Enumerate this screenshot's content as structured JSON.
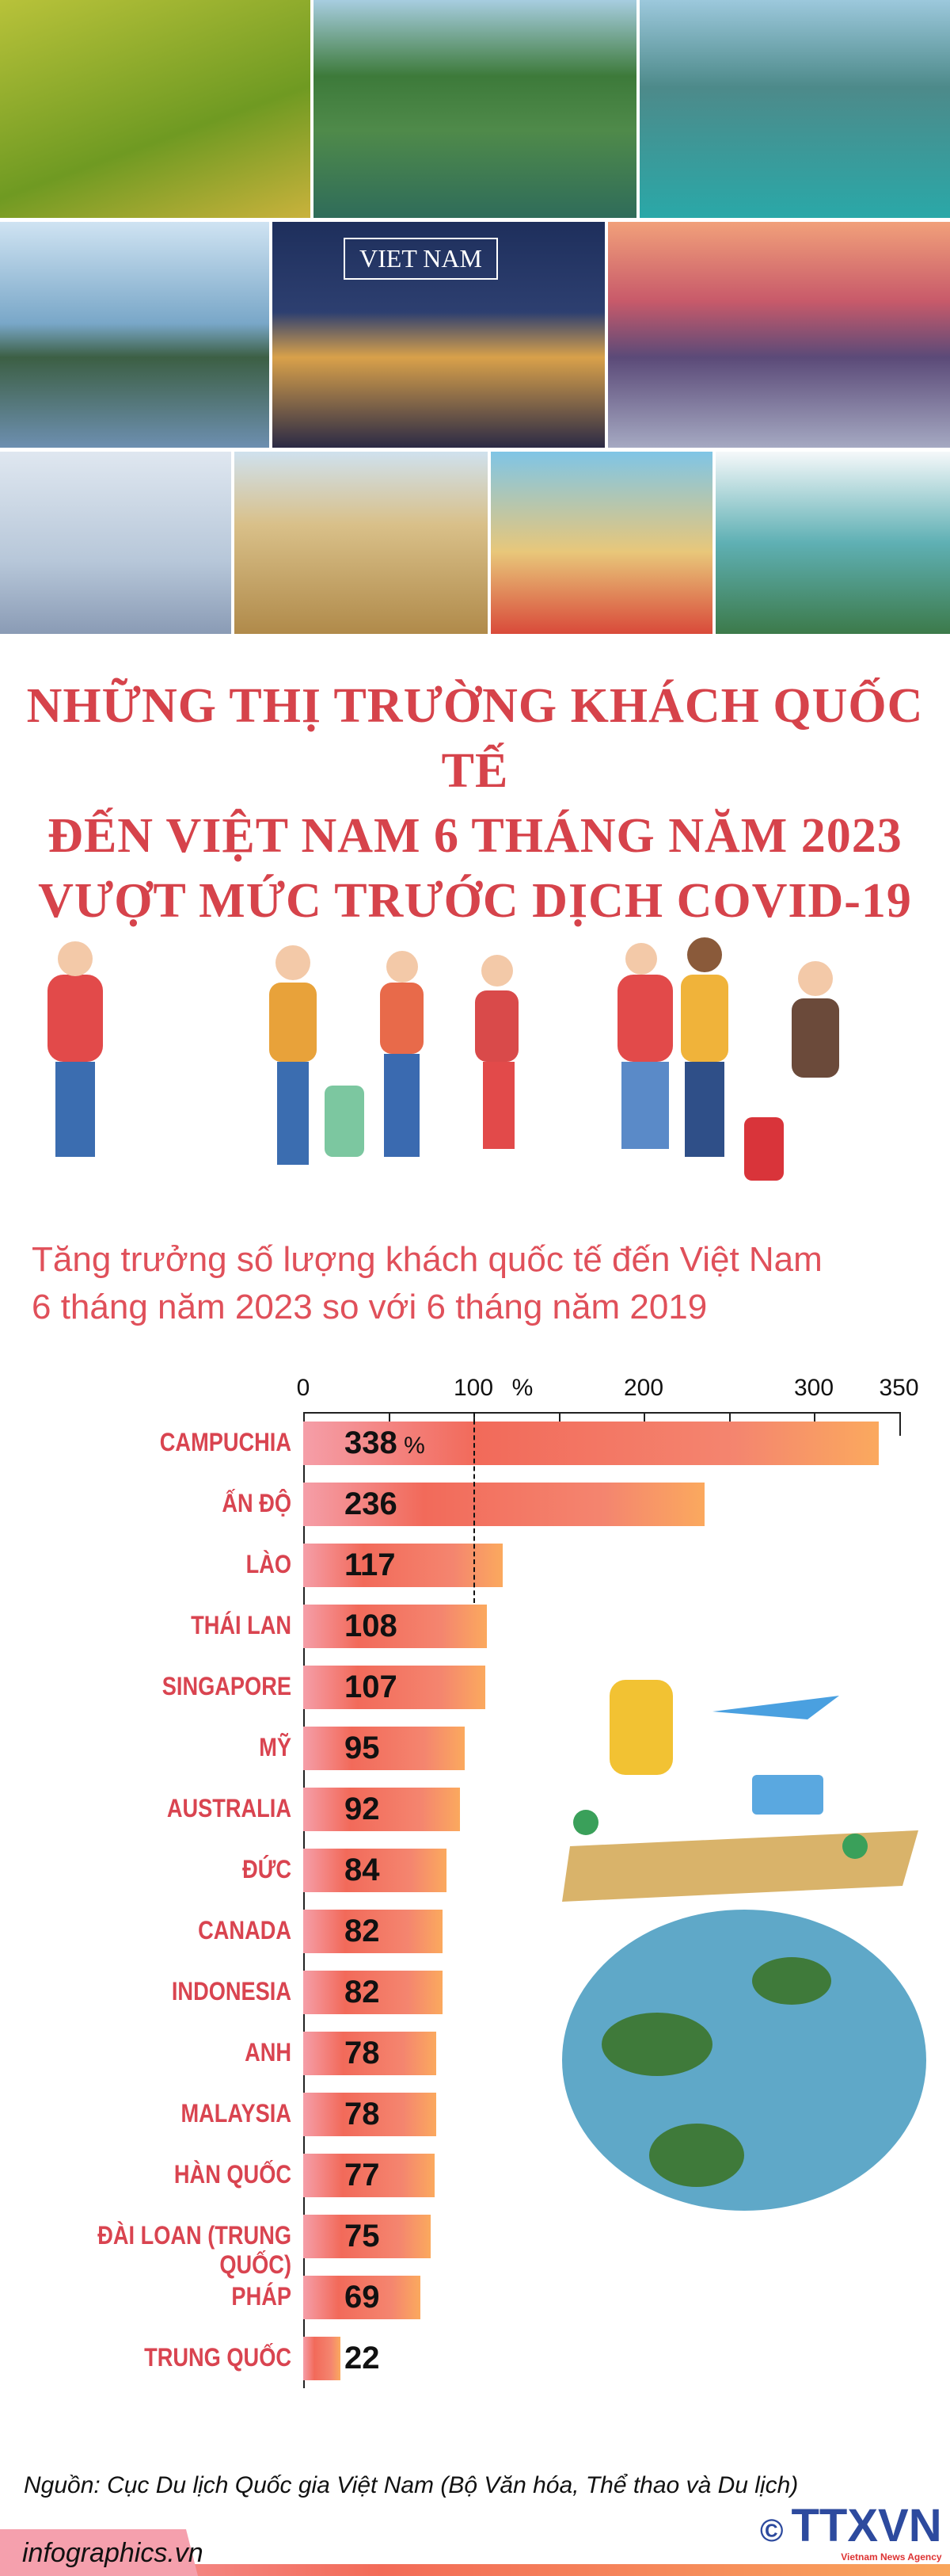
{
  "title": [
    "NHỮNG THỊ TRƯỜNG KHÁCH QUỐC TẾ",
    "ĐẾN VIỆT NAM 6 THÁNG NĂM 2023",
    "VƯỢT MỨC TRƯỚC DỊCH COVID-19"
  ],
  "photo_sign": "VIET NAM",
  "chart_data": {
    "type": "bar",
    "title": "Tăng trưởng số lượng khách quốc tế đến Việt Nam 6 tháng năm 2023 so với 6 tháng năm 2019",
    "title_lines": [
      "Tăng trưởng số lượng khách quốc tế đến Việt Nam",
      "6 tháng năm 2023 so với 6 tháng năm 2019"
    ],
    "unit": "%",
    "xlim": [
      0,
      350
    ],
    "ticks": [
      "0",
      "100",
      "200",
      "300",
      "350"
    ],
    "reference_line": 100,
    "categories": [
      "CAMPUCHIA",
      "ẤN ĐỘ",
      "LÀO",
      "THÁI LAN",
      "SINGAPORE",
      "MỸ",
      "AUSTRALIA",
      "ĐỨC",
      "CANADA",
      "INDONESIA",
      "ANH",
      "MALAYSIA",
      "HÀN QUỐC",
      "ĐÀI LOAN (TRUNG QUỐC)",
      "PHÁP",
      "TRUNG QUỐC"
    ],
    "values": [
      338,
      236,
      117,
      108,
      107,
      95,
      92,
      84,
      82,
      82,
      78,
      78,
      77,
      75,
      69,
      22
    ],
    "colors": {
      "label": "#d94450",
      "bar_start": "#f59ea8",
      "bar_mid": "#f26a5a",
      "bar_end": "#fba95e"
    }
  },
  "source": "Nguồn: Cục Du lịch Quốc gia Việt Nam (Bộ Văn hóa, Thể thao và Du lịch)",
  "footer": {
    "site": "infographics.vn",
    "logo": "TTXVN",
    "logo_sub": "Vietnam News Agency",
    "copyright": "©"
  }
}
